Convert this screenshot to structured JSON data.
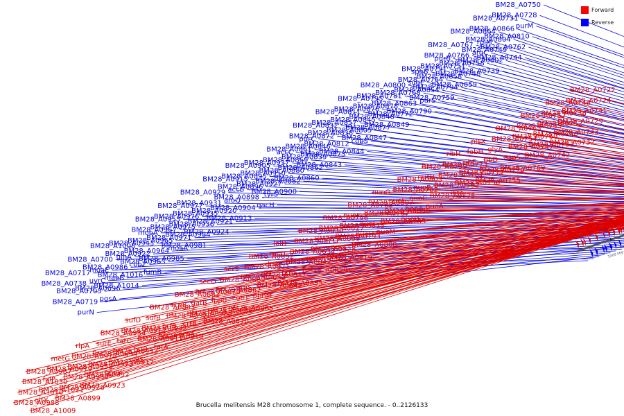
{
  "caption": "Brucella melitensis M28 chromosome 1, complete sequence. - 0..2126133",
  "legend": [
    {
      "name": "Forward",
      "color": "#ff0000"
    },
    {
      "name": "Reverse",
      "color": "#0000ff"
    }
  ],
  "colors": {
    "forward": "#dd0000",
    "reverse": "#0000dd",
    "backbone": "#555555"
  },
  "ticks": [
    "1000 kbp",
    "980 kbp",
    "960 kbp",
    "940 kbp",
    "920 kbp",
    "900 kbp",
    "880 kbp",
    "860 kbp",
    "840 kbp",
    "820 kbp",
    "800 kbp",
    "780 kbp",
    "760 kbp",
    "740 kbp",
    "720 kbp"
  ],
  "reverse_labels": [
    "BM28_A0750",
    "BM28_A0728",
    "purM",
    "BM28_A0810",
    "BM28_A0762",
    "BM28_A0744",
    "BM28_A0731",
    "BM28_A0866",
    "BM28_A0804",
    "BM28_A0749",
    "BM28_A0802",
    "BM28_A0739",
    "BM28_A0864",
    "rplM",
    "argC",
    "BM28_A0758",
    "BM28_A0748",
    "BM28_A0859",
    "BM28_A0767",
    "BM28_A0766",
    "BM28_A0751",
    "BM28_A0858",
    "BM28_A0794",
    "BM28_A0759",
    "purB",
    "BM28_A0791",
    "BM28_A0764",
    "BM28_A0854",
    "purS",
    "BM28_A0790",
    "speB",
    "sugE",
    "BM28_A0768",
    "BM28_A0863",
    "BM28_A0772",
    "BM28_A0849",
    "BM28_A0800",
    "BM28_A0781",
    "BM28_A0878",
    "BM28_A0848",
    "BM28_A0877",
    "BM28_A0847",
    "BM28_A0795",
    "BM28_A0876",
    "BM28_A0845",
    "BM28_A0805",
    "cobS",
    "BM28_A0844",
    "BM28_A0811",
    "BM28_A0857",
    "BM28_A0838",
    "BM28_A0812",
    "BM28_A0873",
    "BM28_A0843",
    "BM28_A0832",
    "BM28_A0872",
    "BM28_A0846",
    "BM28_A0839",
    "BM28_A0862",
    "BM28_A0860",
    "purC",
    "BM28_A0861",
    "BM28_A0869",
    "BM28_A0880",
    "BM28_A0882",
    "BM28_A0900",
    "accC",
    "BM28_A0937",
    "BM28_A0950",
    "BM28_A0927",
    "tyrS",
    "qacH",
    "BM28_A0905",
    "BM28_A0895",
    "BM28_A0896",
    "BM28_A0898",
    "BM28_A0904",
    "BM28_A0913",
    "BM28_A0915",
    "accB",
    "aroQ",
    "BM28_A0920",
    "BM28_A0921",
    "BM28_A0924",
    "BM28_A0929",
    "BM28_A0931",
    "BM28_A0935",
    "BM28_A0936",
    "BM28_A0984",
    "BM28_A0981",
    "BM28_A0977",
    "BM28_A0976",
    "BM28_A0975",
    "BM28_A0971",
    "moaA",
    "BM28_A0985",
    "BM28_A0953",
    "BM28_A0967",
    "BM28_A0965",
    "BM28_A0964",
    "BM28_A0963",
    "fumB",
    "mobA",
    "BM28_A0943",
    "BM28_A0922",
    "cbbZ",
    "BM28_A1016",
    "BM28_A1014",
    "BM28_A1008",
    "glnA",
    "BM28_A0986",
    "maeB",
    "BM28_A0696",
    "pgsA",
    "BM28_A0700",
    "moaE",
    "uvrC",
    "BM28_A0703",
    "BM28_A0719",
    "purN",
    "BM28_A0717",
    "BM28_A0738"
  ],
  "forward_labels": [
    "BM28_A0722",
    "BM28_A0724",
    "BM28_A0741",
    "BM28_A0729",
    "BM28_A0743",
    "BM28_A0732",
    "BM28_A0746",
    "BM28_A0736",
    "BM28_A0752",
    "BM28_A0740",
    "BM28_A0753",
    "BM28_A0742",
    "BM28_A0757",
    "BM28_A0745",
    "BM28_A0760",
    "BM28_A0747",
    "aspS",
    "BM28_A0769",
    "BM28_A0765",
    "BM28_A0754",
    "glyA",
    "ribD",
    "BM28_A0770",
    "BM28_A0755",
    "plsX",
    "fabH",
    "ribE",
    "BM28_A0771",
    "BM28_A0756",
    "ihfA",
    "ribH",
    "BM28_A0773",
    "BM28_A0761",
    "BM28_A0792",
    "BM28_A0775",
    "nuoA",
    "BM28_A0799",
    "nusB",
    "nuoB",
    "nuoC",
    "hppA",
    "nuoD",
    "BM28_A0803",
    "BM28_A0782",
    "nuoE",
    "BM28_A0806",
    "BM28_A0783",
    "nuoM",
    "nuoG",
    "BM28_A0807",
    "BM28_A0787",
    "nuoI",
    "nuoH",
    "BM28_A0808",
    "BM28_A0788",
    "nuoK",
    "BM28_A0815",
    "BM28_A0793",
    "nuoL",
    "BM28_A0819",
    "BM28_A0796",
    "BM28_A0827",
    "BM28_A0809",
    "BM28_A0828",
    "BM28_A0813",
    "BM28_A0829",
    "BM28_A0830",
    "BM28_A0831",
    "BM28_A0834",
    "BM28_A0842",
    "proS",
    "BM28_A0855",
    "lolD",
    "rpsD",
    "dnaE",
    "BM28_A0837",
    "BM28_A0841",
    "phnM",
    "BM28_A0852",
    "BM28_A0871",
    "BM28_A0853",
    "argS",
    "cobT",
    "BM28_A0865",
    "serS",
    "BM28_A0885",
    "BM28_A0867",
    "lppB",
    "BM28_A0886",
    "BM28_A0870",
    "secD",
    "BM28_A0879",
    "gatB",
    "BM28_A0925",
    "crtB",
    "scpA",
    "BM28_A0881",
    "scpB",
    "BM28_A0928",
    "prfB",
    "BM28_A0910",
    "tatA",
    "BM28_A0883",
    "sufB",
    "BM28_A0932",
    "BM28_A0911",
    "tatB",
    "valS",
    "sufD",
    "BM28_A0912",
    "tatC",
    "BM28_A0933",
    "BM28_A0917",
    "ppnK",
    "BM28_A0934",
    "surE",
    "BM28_A0894",
    "BM28_A0973",
    "BM28_A0952",
    "BM28_A0923",
    "rlpA",
    "BM28_A0978",
    "BM28_A0958",
    "BM28_A0939",
    "BM28_A0926",
    "BM28_A0899",
    "metG",
    "BM28_A0979",
    "folP",
    "BM28_A1021",
    "gltX",
    "BM28_A1009",
    "BM28_A0987",
    "BM28_A1030",
    "BM28_A1010",
    "BM28_A0988"
  ]
}
